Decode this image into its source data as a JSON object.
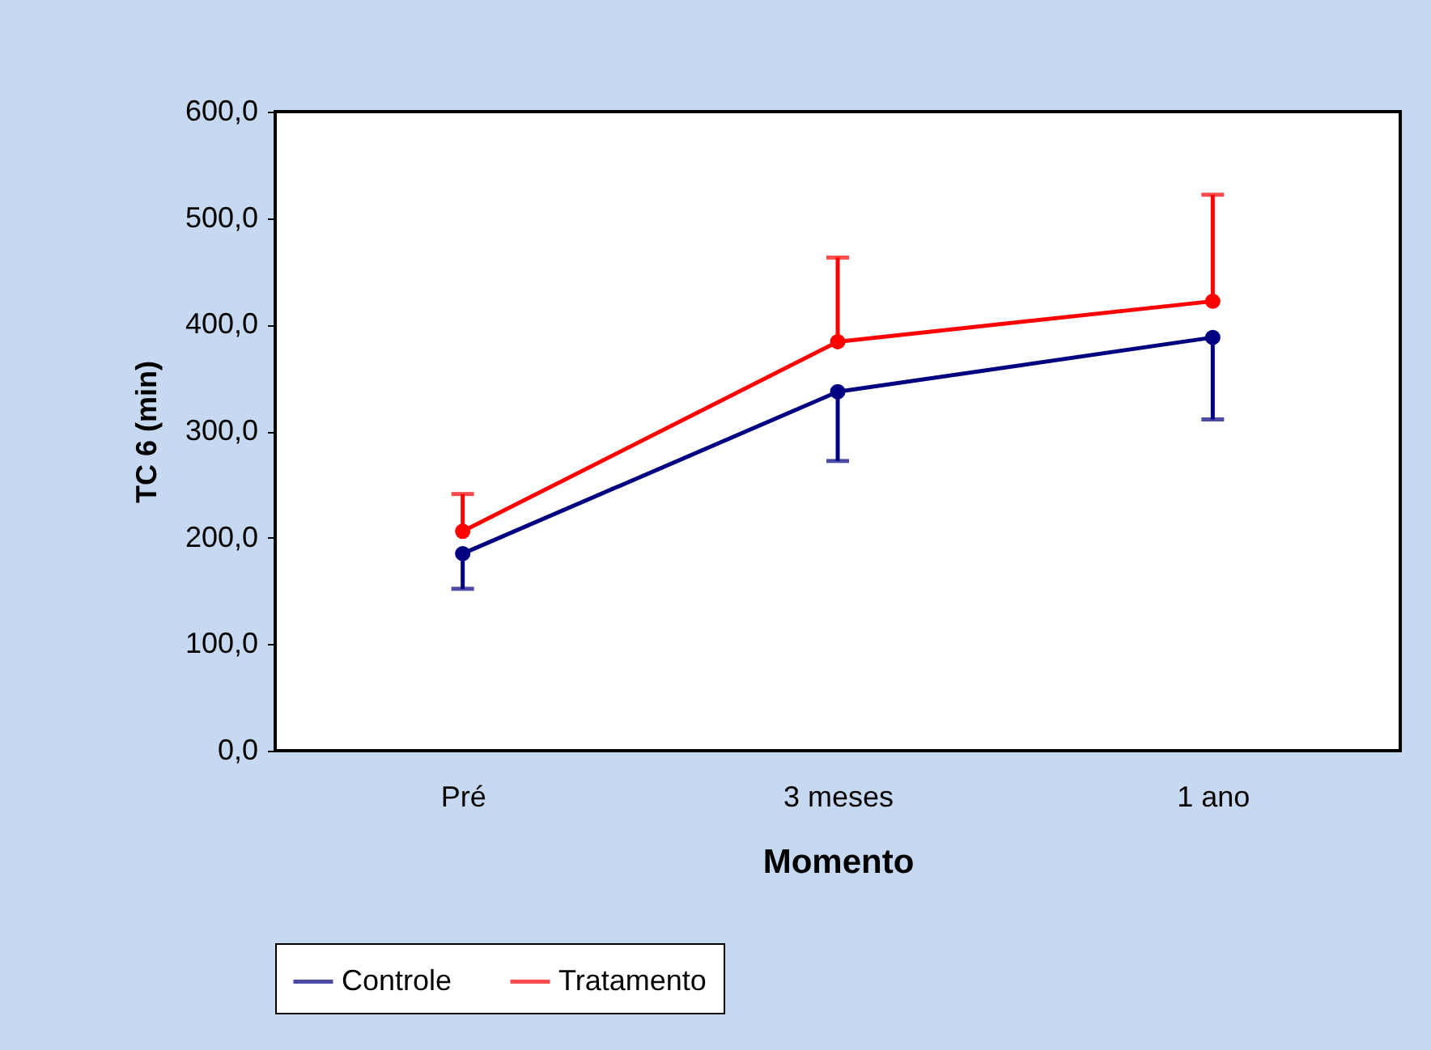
{
  "chart_data": {
    "type": "line",
    "xlabel": "Momento",
    "ylabel": "TC 6 (min)",
    "categories": [
      "Pré",
      "3 meses",
      "1 ano"
    ],
    "series": [
      {
        "name": "Controle",
        "color": "#000080",
        "values": [
          185,
          337,
          388
        ],
        "errors": [
          [
            152,
            185
          ],
          [
            272,
            337
          ],
          [
            311,
            388
          ]
        ]
      },
      {
        "name": "Tratamento",
        "color": "#ff0000",
        "values": [
          206,
          384,
          422
        ],
        "errors": [
          [
            206,
            241
          ],
          [
            384,
            463
          ],
          [
            422,
            522
          ]
        ]
      }
    ],
    "ylim": [
      0,
      600
    ],
    "yticks": [
      {
        "value": 0,
        "label": "0,0"
      },
      {
        "value": 100,
        "label": "100,0"
      },
      {
        "value": 200,
        "label": "200,0"
      },
      {
        "value": 300,
        "label": "300,0"
      },
      {
        "value": 400,
        "label": "400,0"
      },
      {
        "value": 500,
        "label": "500,0"
      },
      {
        "value": 600,
        "label": "600,0"
      }
    ],
    "grid": false,
    "legend": "bottom",
    "marker": "circle",
    "line_style": "solid"
  }
}
